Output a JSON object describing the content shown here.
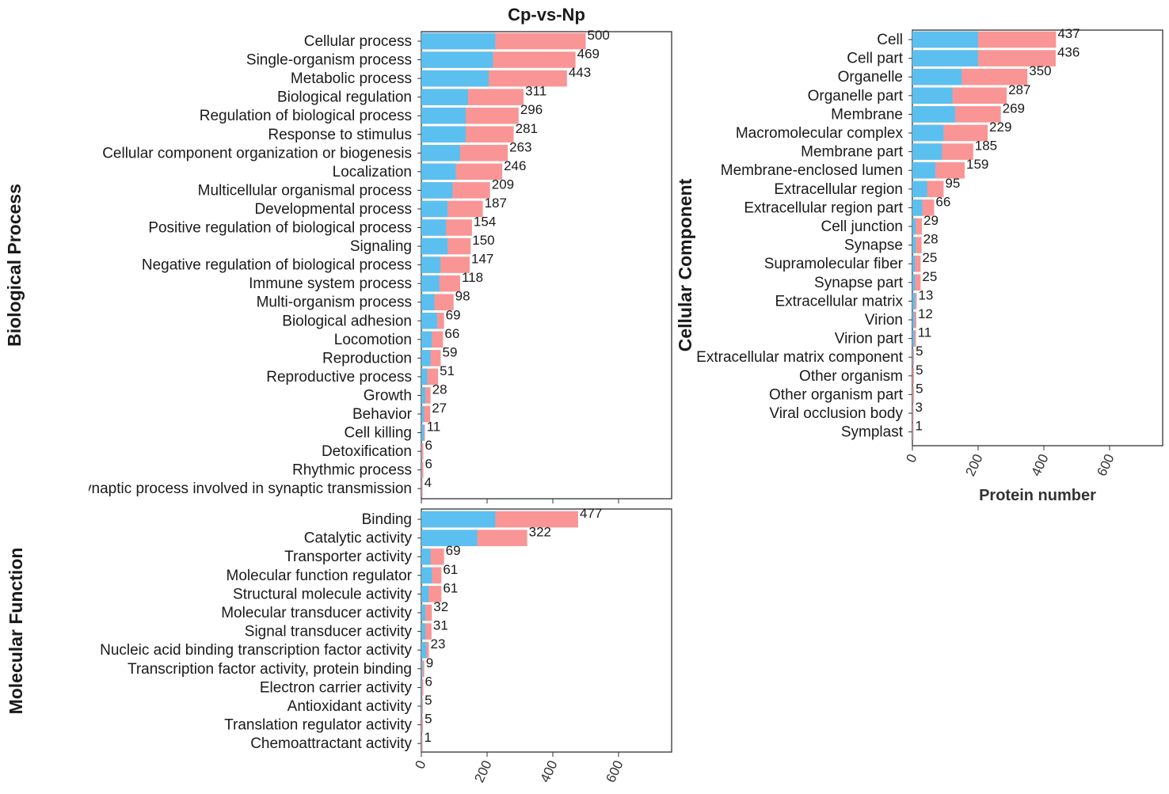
{
  "chart_data": {
    "type": "bar",
    "orientation": "horizontal",
    "stacked": true,
    "title": "Cp-vs-Np",
    "xlabel": "Protein number",
    "x_ticks": [
      "0",
      "200",
      "400",
      "600"
    ],
    "xlim": [
      0,
      750
    ],
    "colors": {
      "first_segment": "#5bc0f0",
      "second_segment": "#fa9595"
    },
    "panels": [
      {
        "id": "bp",
        "label": "Biological Process",
        "categories": [
          "Cellular process",
          "Single-organism process",
          "Metabolic process",
          "Biological regulation",
          "Regulation of biological process",
          "Response to stimulus",
          "Cellular component organization or biogenesis",
          "Localization",
          "Multicellular organismal process",
          "Developmental process",
          "Positive regulation of biological process",
          "Signaling",
          "Negative regulation of biological process",
          "Immune system process",
          "Multi-organism process",
          "Biological adhesion",
          "Locomotion",
          "Reproduction",
          "Reproductive process",
          "Growth",
          "Behavior",
          "Cell killing",
          "Detoxification",
          "Rhythmic process",
          "Presynaptic process involved in synaptic transmission"
        ],
        "totals": [
          500,
          469,
          443,
          311,
          296,
          281,
          263,
          246,
          209,
          187,
          154,
          150,
          147,
          118,
          98,
          69,
          66,
          59,
          51,
          28,
          27,
          11,
          6,
          6,
          4
        ],
        "blue": [
          225,
          218,
          205,
          142,
          135,
          135,
          118,
          105,
          95,
          80,
          75,
          80,
          58,
          55,
          40,
          48,
          32,
          28,
          18,
          12,
          8,
          8,
          1,
          1,
          1
        ],
        "value_labels": [
          "500",
          "469",
          "443",
          "311",
          "296",
          "281",
          "263",
          "246",
          "209",
          "187",
          "154",
          "150",
          "147",
          "118",
          "98",
          "69",
          "66",
          "59",
          "51",
          "28",
          "27",
          "11",
          "6",
          "6",
          "4"
        ]
      },
      {
        "id": "cc",
        "label": "Cellular Component",
        "categories": [
          "Cell",
          "Cell part",
          "Organelle",
          "Organelle part",
          "Membrane",
          "Macromolecular complex",
          "Membrane part",
          "Membrane-enclosed lumen",
          "Extracellular region",
          "Extracellular region part",
          "Cell junction",
          "Synapse",
          "Supramolecular fiber",
          "Synapse part",
          "Extracellular matrix",
          "Virion",
          "Virion part",
          "Extracellular matrix component",
          "Other organism",
          "Other organism part",
          "Viral occlusion body",
          "Symplast"
        ],
        "totals": [
          437,
          436,
          350,
          287,
          269,
          229,
          185,
          159,
          95,
          66,
          29,
          28,
          25,
          25,
          13,
          12,
          11,
          5,
          5,
          5,
          3,
          1
        ],
        "blue": [
          200,
          200,
          150,
          122,
          130,
          95,
          90,
          70,
          45,
          30,
          10,
          10,
          8,
          8,
          8,
          6,
          6,
          2,
          1,
          1,
          1,
          1
        ],
        "value_labels": [
          "437",
          "436",
          "350",
          "287",
          "269",
          "229",
          "185",
          "159",
          "95",
          "66",
          "29",
          "28",
          "25",
          "25",
          "13",
          "12",
          "11",
          "5",
          "5",
          "5",
          "3",
          "1"
        ]
      },
      {
        "id": "mf",
        "label": "Molecular Function",
        "categories": [
          "Binding",
          "Catalytic activity",
          "Transporter activity",
          "Molecular function regulator",
          "Structural molecule activity",
          "Molecular transducer activity",
          "Signal transducer activity",
          "Nucleic acid binding transcription factor activity",
          "Transcription factor activity, protein binding",
          "Electron carrier activity",
          "Antioxidant activity",
          "Translation regulator activity",
          "Chemoattractant activity"
        ],
        "totals": [
          477,
          322,
          69,
          61,
          61,
          32,
          31,
          23,
          9,
          6,
          5,
          5,
          1
        ],
        "blue": [
          225,
          170,
          28,
          32,
          22,
          12,
          12,
          15,
          4,
          2,
          2,
          1,
          1
        ],
        "value_labels": [
          "477",
          "322",
          "69",
          "61",
          "61",
          "32",
          "31",
          "23",
          "9",
          "6",
          "5",
          "5",
          "1"
        ]
      }
    ]
  }
}
